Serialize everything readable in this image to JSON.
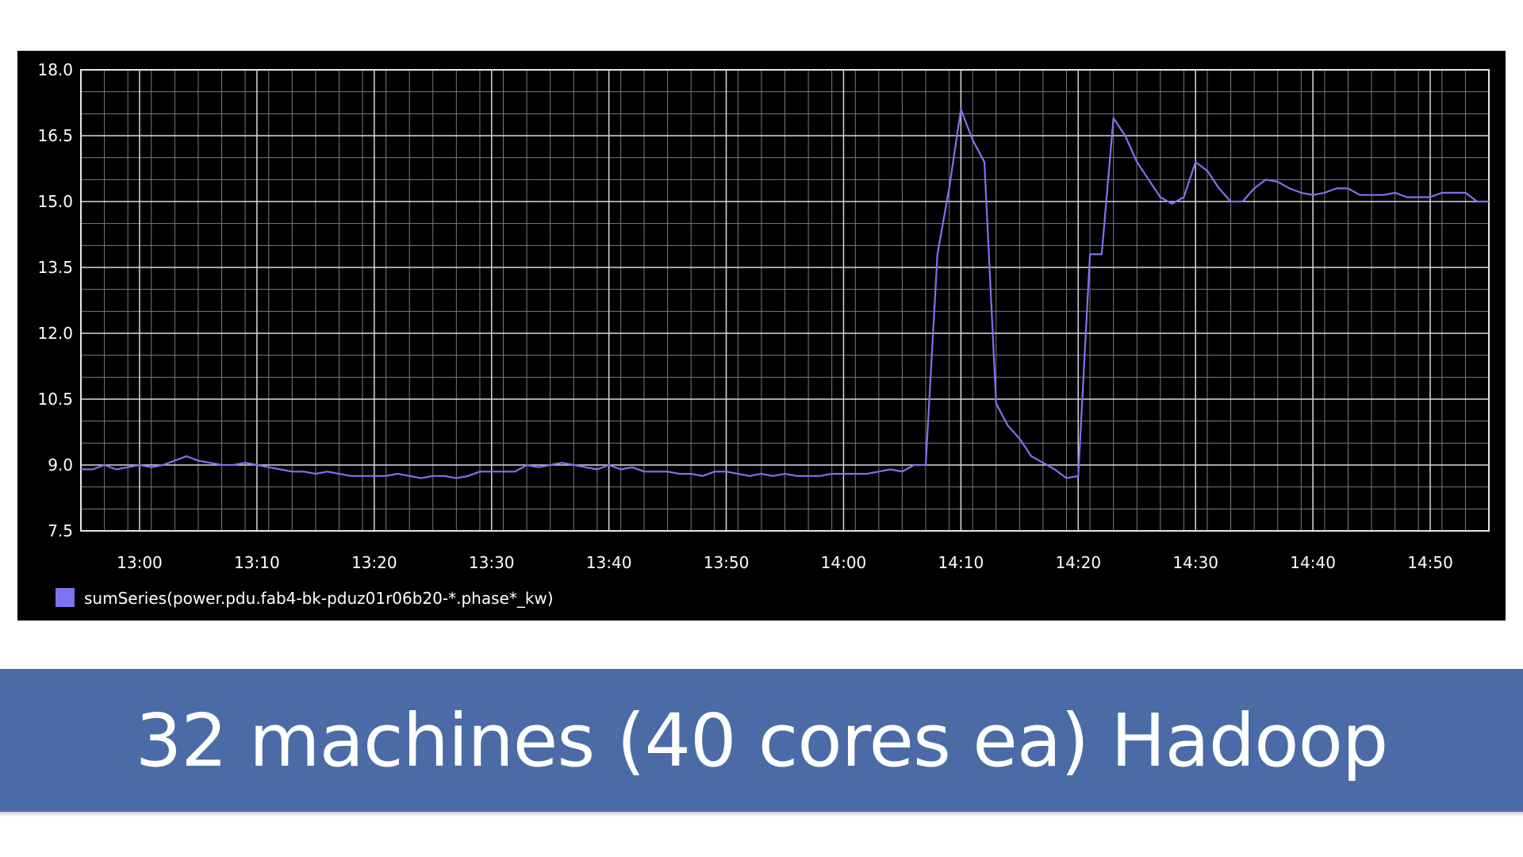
{
  "chart_data": {
    "type": "line",
    "title": "",
    "xlabel": "",
    "ylabel": "",
    "ylim": [
      7.5,
      18.0
    ],
    "yticks": [
      "18.0",
      "16.5",
      "15.0",
      "13.5",
      "12.0",
      "10.5",
      "9.0",
      "7.5"
    ],
    "xticks": [
      "13:00",
      "13:10",
      "13:20",
      "13:30",
      "13:40",
      "13:50",
      "14:00",
      "14:10",
      "14:20",
      "14:30",
      "14:40",
      "14:50"
    ],
    "xlim": [
      "12:55",
      "14:55"
    ],
    "grid": true,
    "legend_position": "bottom-left",
    "colors": {
      "background": "#000000",
      "grid_major": "#d9d9d9",
      "grid_minor": "#7a7a7a",
      "series": "#7b74f0",
      "text": "#ffffff"
    },
    "series": [
      {
        "name": "sumSeries(power.pdu.fab4-bk-pduz01r06b20-*.phase*_kw)",
        "x": [
          "12:55",
          "12:56",
          "12:57",
          "12:58",
          "12:59",
          "13:00",
          "13:01",
          "13:02",
          "13:03",
          "13:04",
          "13:05",
          "13:06",
          "13:07",
          "13:08",
          "13:09",
          "13:10",
          "13:11",
          "13:12",
          "13:13",
          "13:14",
          "13:15",
          "13:16",
          "13:17",
          "13:18",
          "13:19",
          "13:20",
          "13:21",
          "13:22",
          "13:23",
          "13:24",
          "13:25",
          "13:26",
          "13:27",
          "13:28",
          "13:29",
          "13:30",
          "13:31",
          "13:32",
          "13:33",
          "13:34",
          "13:35",
          "13:36",
          "13:37",
          "13:38",
          "13:39",
          "13:40",
          "13:41",
          "13:42",
          "13:43",
          "13:44",
          "13:45",
          "13:46",
          "13:47",
          "13:48",
          "13:49",
          "13:50",
          "13:51",
          "13:52",
          "13:53",
          "13:54",
          "13:55",
          "13:56",
          "13:57",
          "13:58",
          "13:59",
          "14:00",
          "14:01",
          "14:02",
          "14:03",
          "14:04",
          "14:05",
          "14:06",
          "14:07",
          "14:08",
          "14:09",
          "14:10",
          "14:11",
          "14:12",
          "14:13",
          "14:14",
          "14:15",
          "14:16",
          "14:17",
          "14:18",
          "14:19",
          "14:20",
          "14:21",
          "14:22",
          "14:23",
          "14:24",
          "14:25",
          "14:26",
          "14:27",
          "14:28",
          "14:29",
          "14:30",
          "14:31",
          "14:32",
          "14:33",
          "14:34",
          "14:35",
          "14:36",
          "14:37",
          "14:38",
          "14:39",
          "14:40",
          "14:41",
          "14:42",
          "14:43",
          "14:44",
          "14:45",
          "14:46",
          "14:47",
          "14:48",
          "14:49",
          "14:50",
          "14:51",
          "14:52",
          "14:53",
          "14:54",
          "14:55"
        ],
        "y": [
          8.9,
          8.9,
          9.0,
          8.9,
          8.95,
          9.0,
          8.95,
          9.0,
          9.1,
          9.2,
          9.1,
          9.05,
          9.0,
          9.0,
          9.05,
          9.0,
          8.95,
          8.9,
          8.85,
          8.85,
          8.8,
          8.85,
          8.8,
          8.75,
          8.75,
          8.75,
          8.75,
          8.8,
          8.75,
          8.7,
          8.75,
          8.75,
          8.7,
          8.75,
          8.85,
          8.85,
          8.85,
          8.85,
          9.0,
          8.95,
          9.0,
          9.05,
          9.0,
          8.95,
          8.9,
          9.0,
          8.9,
          8.95,
          8.85,
          8.85,
          8.85,
          8.8,
          8.8,
          8.75,
          8.85,
          8.85,
          8.8,
          8.75,
          8.8,
          8.75,
          8.8,
          8.75,
          8.75,
          8.75,
          8.8,
          8.8,
          8.8,
          8.8,
          8.85,
          8.9,
          8.85,
          9.0,
          9.0,
          13.8,
          15.3,
          17.1,
          16.4,
          15.9,
          10.4,
          9.9,
          9.6,
          9.2,
          9.05,
          8.9,
          8.7,
          8.75,
          13.8,
          13.8,
          16.9,
          16.5,
          15.9,
          15.5,
          15.1,
          14.95,
          15.1,
          15.9,
          15.7,
          15.3,
          15.0,
          15.0,
          15.3,
          15.5,
          15.45,
          15.3,
          15.2,
          15.15,
          15.2,
          15.3,
          15.3,
          15.15,
          15.15,
          15.15,
          15.2,
          15.1,
          15.1,
          15.1,
          15.2,
          15.2,
          15.2,
          15.0,
          15.0
        ]
      }
    ]
  },
  "caption": "32 machines (40 cores ea) Hadoop"
}
